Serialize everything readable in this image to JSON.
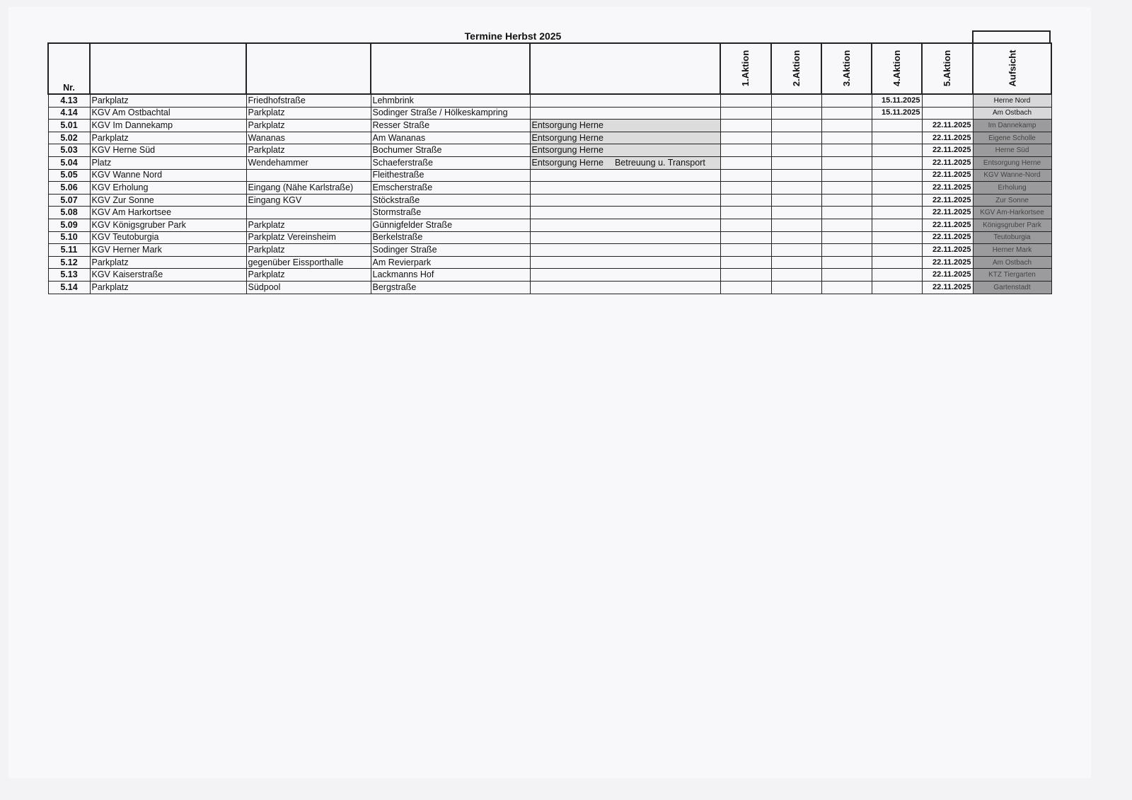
{
  "title": "Termine Herbst 2025",
  "headers": {
    "nr": "Nr.",
    "aktionen": [
      "1.Aktion",
      "2.Aktion",
      "3.Aktion",
      "4.Aktion",
      "5.Aktion"
    ],
    "aufsicht": "Aufsicht"
  },
  "rows": [
    {
      "nr": "4.13",
      "name": "Parkplatz",
      "ort": "Friedhofstraße",
      "strasse": "Lehmbrink",
      "info": "",
      "info2": "",
      "a4": "15.11.2025",
      "a5": "",
      "aufsicht": "Herne Nord"
    },
    {
      "nr": "4.14",
      "name": "KGV Am Ostbachtal",
      "ort": "Parkplatz",
      "strasse": "Sodinger Straße / Hölkeskampring",
      "info": "",
      "info2": "",
      "a4": "15.11.2025",
      "a5": "",
      "aufsicht": "Am Ostbach"
    },
    {
      "nr": "5.01",
      "name": "KGV Im Dannekamp",
      "ort": "Parkplatz",
      "strasse": "Resser Straße",
      "info": "Entsorgung Herne",
      "info2": "",
      "a4": "",
      "a5": "22.11.2025",
      "aufsicht": "Im Dannekamp"
    },
    {
      "nr": "5.02",
      "name": "Parkplatz",
      "ort": "Wananas",
      "strasse": "Am Wananas",
      "info": "Entsorgung Herne",
      "info2": "",
      "a4": "",
      "a5": "22.11.2025",
      "aufsicht": "Eigene Scholle"
    },
    {
      "nr": "5.03",
      "name": "KGV Herne Süd",
      "ort": "Parkplatz",
      "strasse": "Bochumer Straße",
      "info": "Entsorgung Herne",
      "info2": "",
      "a4": "",
      "a5": "22.11.2025",
      "aufsicht": "Herne Süd"
    },
    {
      "nr": "5.04",
      "name": "Platz",
      "ort": "Wendehammer",
      "strasse": "Schaeferstraße",
      "info": "Entsorgung Herne",
      "info2": "Betreuung u. Transport",
      "a4": "",
      "a5": "22.11.2025",
      "aufsicht": "Entsorgung Herne"
    },
    {
      "nr": "5.05",
      "name": "KGV Wanne Nord",
      "ort": "",
      "strasse": "Fleithestraße",
      "info": "",
      "info2": "",
      "a4": "",
      "a5": "22.11.2025",
      "aufsicht": "KGV Wanne-Nord"
    },
    {
      "nr": "5.06",
      "name": "KGV Erholung",
      "ort": "Eingang (Nähe Karlstraße)",
      "strasse": "Emscherstraße",
      "info": "",
      "info2": "",
      "a4": "",
      "a5": "22.11.2025",
      "aufsicht": "Erholung"
    },
    {
      "nr": "5.07",
      "name": "KGV Zur Sonne",
      "ort": "Eingang KGV",
      "strasse": "Stöckstraße",
      "info": "",
      "info2": "",
      "a4": "",
      "a5": "22.11.2025",
      "aufsicht": "Zur Sonne"
    },
    {
      "nr": "5.08",
      "name": "KGV Am Harkortsee",
      "ort": "",
      "strasse": "Stormstraße",
      "info": "",
      "info2": "",
      "a4": "",
      "a5": "22.11.2025",
      "aufsicht": "KGV Am-Harkortsee"
    },
    {
      "nr": "5.09",
      "name": "KGV Königsgruber Park",
      "ort": "Parkplatz",
      "strasse": "Günnigfelder Straße",
      "info": "",
      "info2": "",
      "a4": "",
      "a5": "22.11.2025",
      "aufsicht": "Königsgruber Park"
    },
    {
      "nr": "5.10",
      "name": "KGV Teutoburgia",
      "ort": "Parkplatz Vereinsheim",
      "strasse": "Berkelstraße",
      "info": "",
      "info2": "",
      "a4": "",
      "a5": "22.11.2025",
      "aufsicht": "Teutoburgia"
    },
    {
      "nr": "5.11",
      "name": "KGV Herner Mark",
      "ort": "Parkplatz",
      "strasse": "Sodinger Straße",
      "info": "",
      "info2": "",
      "a4": "",
      "a5": "22.11.2025",
      "aufsicht": "Herner Mark"
    },
    {
      "nr": "5.12",
      "name": "Parkplatz",
      "ort": "gegenüber Eissporthalle",
      "strasse": "Am Revierpark",
      "info": "",
      "info2": "",
      "a4": "",
      "a5": "22.11.2025",
      "aufsicht": "Am Ostbach"
    },
    {
      "nr": "5.13",
      "name": "KGV Kaiserstraße",
      "ort": "Parkplatz",
      "strasse": "Lackmanns Hof",
      "info": "",
      "info2": "",
      "a4": "",
      "a5": "22.11.2025",
      "aufsicht": "KTZ Tiergarten"
    },
    {
      "nr": "5.14",
      "name": "Parkplatz",
      "ort": "Südpool",
      "strasse": "Bergstraße",
      "info": "",
      "info2": "",
      "a4": "",
      "a5": "22.11.2025",
      "aufsicht": "Gartenstadt"
    }
  ]
}
